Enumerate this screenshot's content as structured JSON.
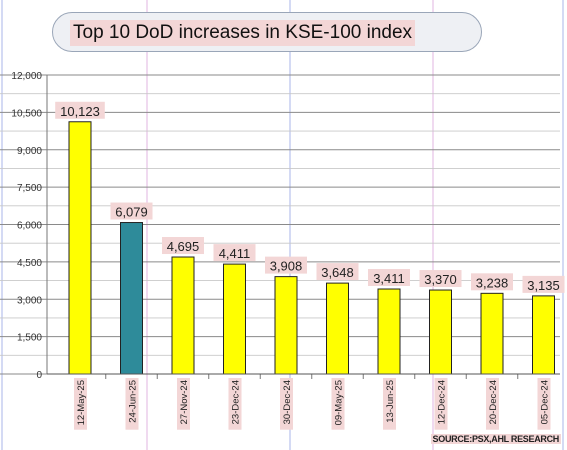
{
  "title": "Top 10 DoD increases in KSE-100 index",
  "source": "SOURCE:PSX,AHL RESEARCH",
  "colors": {
    "bar_default": "#ffff00",
    "bar_highlight": "#2e8b9a",
    "label_bg": "#f3d6d6",
    "grid": "#8a8a8a",
    "vline_blue": "#a9b6e8",
    "vline_pink": "#e2b5e0"
  },
  "chart_data": {
    "type": "bar",
    "categories": [
      "12-May-25",
      "24-Jun-25",
      "27-Nov-24",
      "23-Dec-24",
      "30-Dec-24",
      "09-May-25",
      "13-Jun-25",
      "12-Dec-24",
      "20-Dec-24",
      "05-Dec-24"
    ],
    "values": [
      10123,
      6079,
      4695,
      4411,
      3908,
      3648,
      3411,
      3370,
      3238,
      3135
    ],
    "value_labels": [
      "10,123",
      "6,079",
      "4,695",
      "4,411",
      "3,908",
      "3,648",
      "3,411",
      "3,370",
      "3,238",
      "3,135"
    ],
    "highlight_index": 1,
    "ylim": [
      0,
      12000
    ],
    "yticks": [
      0,
      1500,
      3000,
      4500,
      6000,
      7500,
      9000,
      10500,
      12000
    ],
    "ytick_labels": [
      "0",
      "1,500",
      "3,000",
      "4,500",
      "6,000",
      "7,500",
      "9,000",
      "10,500",
      "12,000"
    ],
    "grid": true,
    "legend": "none"
  }
}
